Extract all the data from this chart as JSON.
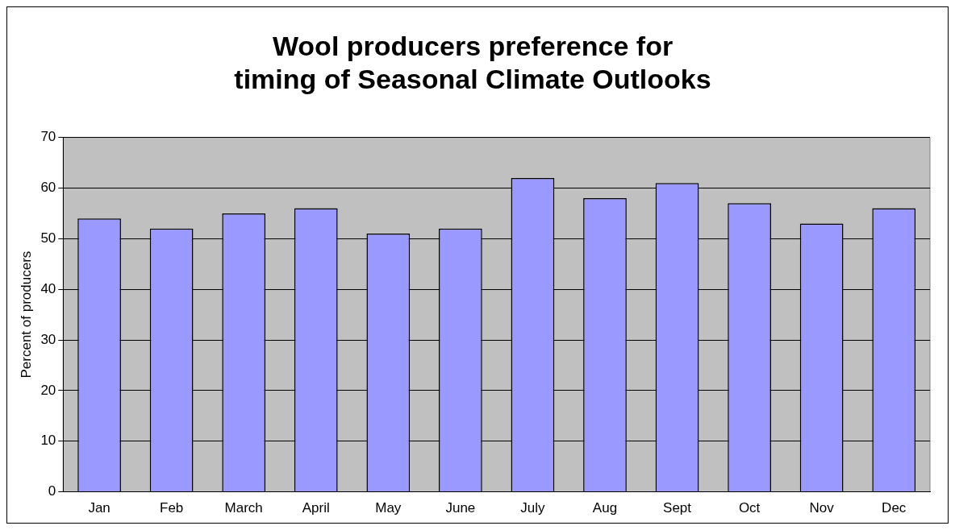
{
  "chart_data": {
    "type": "bar",
    "title": "Wool producers preference for timing of Seasonal Climate Outlooks",
    "ylabel": "Percent of producers",
    "categories": [
      "Jan",
      "Feb",
      "March",
      "April",
      "May",
      "June",
      "July",
      "Aug",
      "Sept",
      "Oct",
      "Nov",
      "Dec"
    ],
    "values": [
      54,
      52,
      55,
      56,
      51,
      52,
      62,
      58,
      61,
      57,
      53,
      56
    ],
    "color": "#9999ff",
    "ylim": [
      0,
      70
    ],
    "yticks": [
      0,
      10,
      20,
      30,
      40,
      50,
      60,
      70
    ],
    "grid": "y",
    "legend": false
  }
}
